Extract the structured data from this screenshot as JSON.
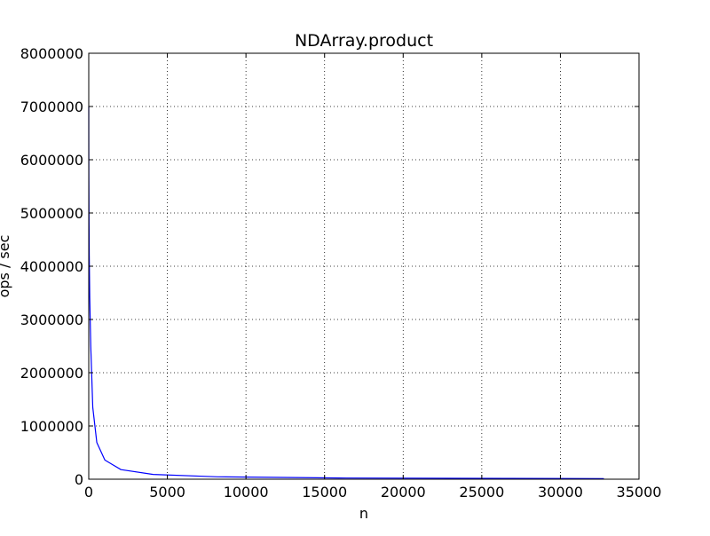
{
  "chart_data": {
    "type": "line",
    "title": "NDArray.product",
    "xlabel": "n",
    "ylabel": "ops / sec",
    "xlim": [
      0,
      35000
    ],
    "ylim": [
      0,
      8000000
    ],
    "x_ticks": [
      "0",
      "5000",
      "10000",
      "15000",
      "20000",
      "25000",
      "30000",
      "35000"
    ],
    "y_ticks": [
      "0",
      "1000000",
      "2000000",
      "3000000",
      "4000000",
      "5000000",
      "6000000",
      "7000000",
      "8000000"
    ],
    "grid": true,
    "grid_style": "dotted",
    "legend": "none",
    "series": [
      {
        "color": "#0000ff",
        "x": [
          1,
          2,
          4,
          8,
          16,
          32,
          64,
          128,
          256,
          512,
          1024,
          2048,
          4096,
          8192,
          16384,
          32768
        ],
        "y": [
          7000000,
          6400000,
          6000000,
          5600000,
          5000000,
          4200000,
          3400000,
          2500000,
          1350000,
          690000,
          360000,
          180000,
          90000,
          45000,
          22000,
          11000
        ]
      }
    ]
  }
}
